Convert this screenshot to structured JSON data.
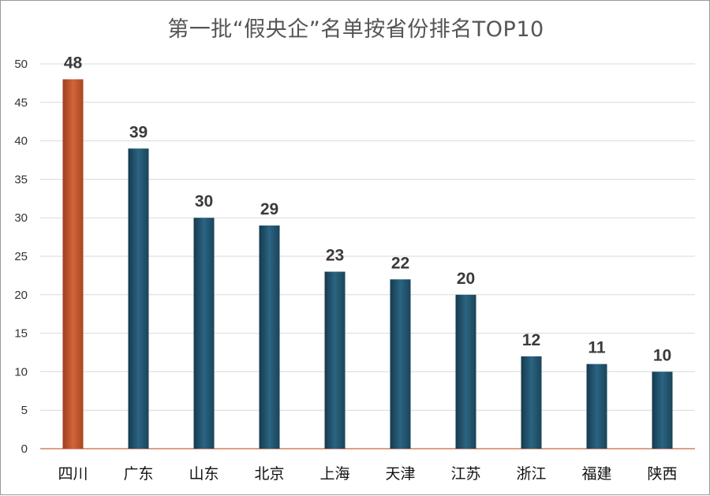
{
  "chart_data": {
    "type": "bar",
    "title": "第一批“假央企”名单按省份排名TOP10",
    "categories": [
      "四川",
      "广东",
      "山东",
      "北京",
      "上海",
      "天津",
      "江苏",
      "浙江",
      "福建",
      "陕西"
    ],
    "values": [
      48,
      39,
      30,
      29,
      23,
      22,
      20,
      12,
      11,
      10
    ],
    "ylim": [
      0,
      50
    ],
    "yticks": [
      0,
      5,
      10,
      15,
      20,
      25,
      30,
      35,
      40,
      45,
      50
    ],
    "grid": true,
    "highlight_index": 0,
    "colors": {
      "highlight": "#c0522d",
      "bar": "#1f4e66",
      "grid": "#d9d9d9",
      "axis": "#d08060"
    }
  }
}
